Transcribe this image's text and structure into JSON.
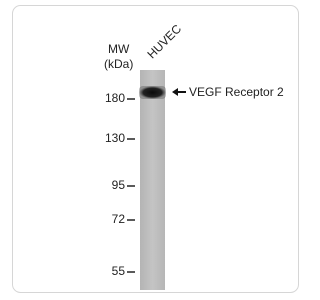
{
  "blot": {
    "lane_label": "HUVEC",
    "mw_label": "MW",
    "mw_unit": "(kDa)",
    "markers": [
      180,
      130,
      95,
      72,
      55
    ],
    "band_label": "VEGF Receptor 2"
  }
}
